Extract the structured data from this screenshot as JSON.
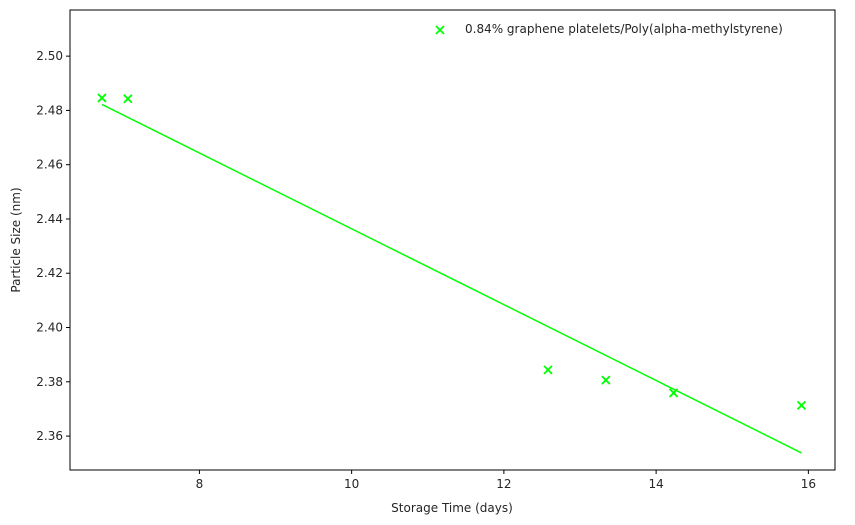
{
  "chart_data": {
    "type": "scatter",
    "title": "",
    "xlabel": "Storage Time (days)",
    "ylabel": "Particle Size (nm)",
    "xlim": [
      6.3,
      16.35
    ],
    "ylim": [
      2.3475,
      2.517
    ],
    "xticks": [
      8,
      10,
      12,
      14,
      16
    ],
    "xtick_labels": [
      "8",
      "10",
      "12",
      "14",
      "16"
    ],
    "yticks": [
      2.36,
      2.38,
      2.4,
      2.42,
      2.44,
      2.46,
      2.48,
      2.5
    ],
    "ytick_labels": [
      "2.36",
      "2.38",
      "2.40",
      "2.42",
      "2.44",
      "2.46",
      "2.48",
      "2.50"
    ],
    "grid": false,
    "legend_position": "top-right",
    "series": [
      {
        "name": "0.84% graphene platelets/Poly(alpha-methylstyrene)",
        "marker": "x",
        "color": "#00ff00",
        "points": [
          {
            "x": 6.72,
            "y": 2.4846
          },
          {
            "x": 7.06,
            "y": 2.4843
          },
          {
            "x": 12.58,
            "y": 2.3844
          },
          {
            "x": 13.34,
            "y": 2.3806
          },
          {
            "x": 14.23,
            "y": 2.3759
          },
          {
            "x": 15.91,
            "y": 2.3713
          }
        ],
        "fit_line": {
          "color": "#00ff00",
          "x": [
            6.72,
            15.91
          ],
          "y": [
            2.4822,
            2.3538
          ]
        }
      }
    ]
  }
}
